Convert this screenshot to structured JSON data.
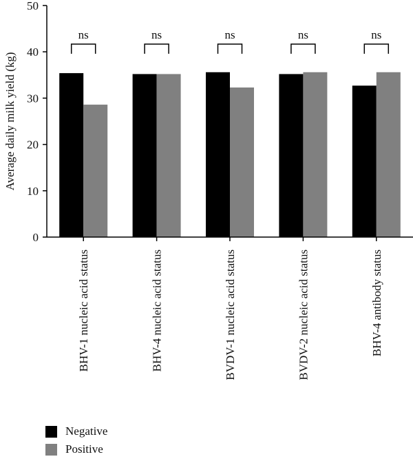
{
  "chart_data": {
    "type": "bar",
    "title": "",
    "xlabel": "",
    "ylabel": "Average daily milk yield (kg)",
    "ylim": [
      0,
      50
    ],
    "yticks": [
      0,
      10,
      20,
      30,
      40,
      50
    ],
    "categories": [
      "BHV-1 nucleic acid status",
      "BHV-4 nucleic acid status",
      "BVDV-1 nucleic acid status",
      "BVDV-2 nucleic acid status",
      "BHV-4 antibody status"
    ],
    "series": [
      {
        "name": "Negative",
        "color": "#000000",
        "values": [
          35.4,
          35.2,
          35.6,
          35.2,
          32.7
        ]
      },
      {
        "name": "Positive",
        "color": "#808080",
        "values": [
          28.6,
          35.2,
          32.3,
          35.6,
          35.6
        ]
      }
    ],
    "annotations": [
      "ns",
      "ns",
      "ns",
      "ns",
      "ns"
    ],
    "grid": false,
    "legend_position": "bottom-left"
  }
}
